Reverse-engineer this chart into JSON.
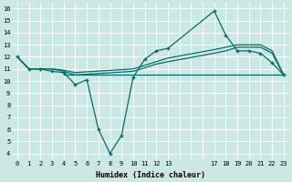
{
  "xlabel": "Humidex (Indice chaleur)",
  "bg_color": "#cce8e4",
  "grid_color": "#b0d8d2",
  "line_color": "#006e6a",
  "xlim": [
    -0.5,
    23.5
  ],
  "ylim": [
    3.5,
    16.5
  ],
  "xticks_major": [
    0,
    1,
    2,
    3,
    4,
    5,
    6,
    7,
    8,
    9,
    10,
    11,
    12,
    13,
    17,
    18,
    19,
    20,
    21,
    22,
    23
  ],
  "xticks_grid": [
    0,
    1,
    2,
    3,
    4,
    5,
    6,
    7,
    8,
    9,
    10,
    11,
    12,
    13,
    14,
    15,
    16,
    17,
    18,
    19,
    20,
    21,
    22,
    23
  ],
  "yticks": [
    4,
    5,
    6,
    7,
    8,
    9,
    10,
    11,
    12,
    13,
    14,
    15,
    16
  ],
  "lines": [
    {
      "x": [
        0,
        1,
        2,
        3,
        4,
        5,
        6,
        7,
        8,
        9,
        10,
        11,
        12,
        13,
        17,
        18,
        19,
        20,
        21,
        22,
        23
      ],
      "y": [
        12,
        11,
        11,
        10.8,
        10.7,
        9.7,
        10.1,
        6.0,
        4.0,
        5.5,
        10.3,
        11.8,
        12.5,
        12.7,
        15.8,
        13.8,
        12.5,
        12.5,
        12.3,
        11.5,
        10.5
      ],
      "marker": true
    },
    {
      "x": [
        0,
        1,
        2,
        3,
        4,
        5,
        10,
        11,
        12,
        13,
        17,
        18,
        19,
        20,
        21,
        22,
        23
      ],
      "y": [
        12,
        11,
        11,
        11,
        10.8,
        10.5,
        10.8,
        11.1,
        11.4,
        11.6,
        12.3,
        12.5,
        12.8,
        12.8,
        12.8,
        12.3,
        10.5
      ],
      "marker": false
    },
    {
      "x": [
        0,
        1,
        2,
        3,
        4,
        5,
        10,
        11,
        12,
        13,
        17,
        18,
        19,
        20,
        21,
        22,
        23
      ],
      "y": [
        12,
        11,
        11,
        11.0,
        10.9,
        10.7,
        11.0,
        11.3,
        11.6,
        11.9,
        12.6,
        12.8,
        13.0,
        13.0,
        13.0,
        12.5,
        10.5
      ],
      "marker": false
    },
    {
      "x": [
        4,
        23
      ],
      "y": [
        10.5,
        10.5
      ],
      "marker": false
    }
  ]
}
